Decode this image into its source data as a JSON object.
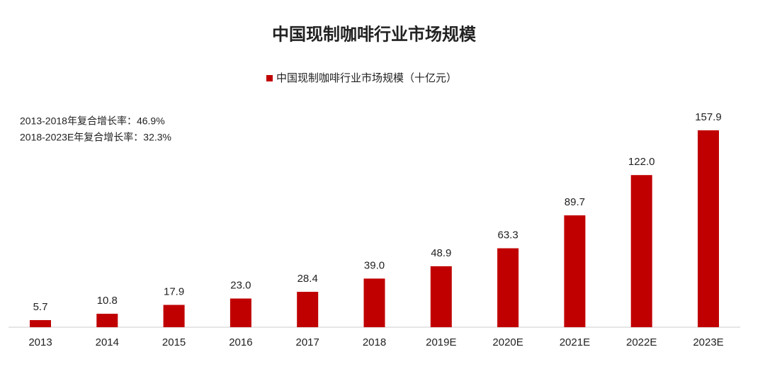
{
  "chart_data": {
    "type": "bar",
    "title": "中国现制咖啡行业市场规模",
    "categories": [
      "2013",
      "2014",
      "2015",
      "2016",
      "2017",
      "2018",
      "2019E",
      "2020E",
      "2021E",
      "2022E",
      "2023E"
    ],
    "series": [
      {
        "name": "中国现制咖啡行业市场规模（十亿元）",
        "color": "#c00000",
        "values": [
          5.7,
          10.8,
          17.9,
          23,
          28.4,
          39,
          48.9,
          63.3,
          89.7,
          122,
          157.9
        ],
        "value_labels": [
          "5.7",
          "10.8",
          "17.9",
          "23.0",
          "28.4",
          "39.0",
          "48.9",
          "63.3",
          "89.7",
          "122.0",
          "157.9"
        ]
      }
    ],
    "annotations": [
      "2013-2018年复合增长率：46.9%",
      "2018-2023E年复合增长率：32.3%"
    ]
  }
}
